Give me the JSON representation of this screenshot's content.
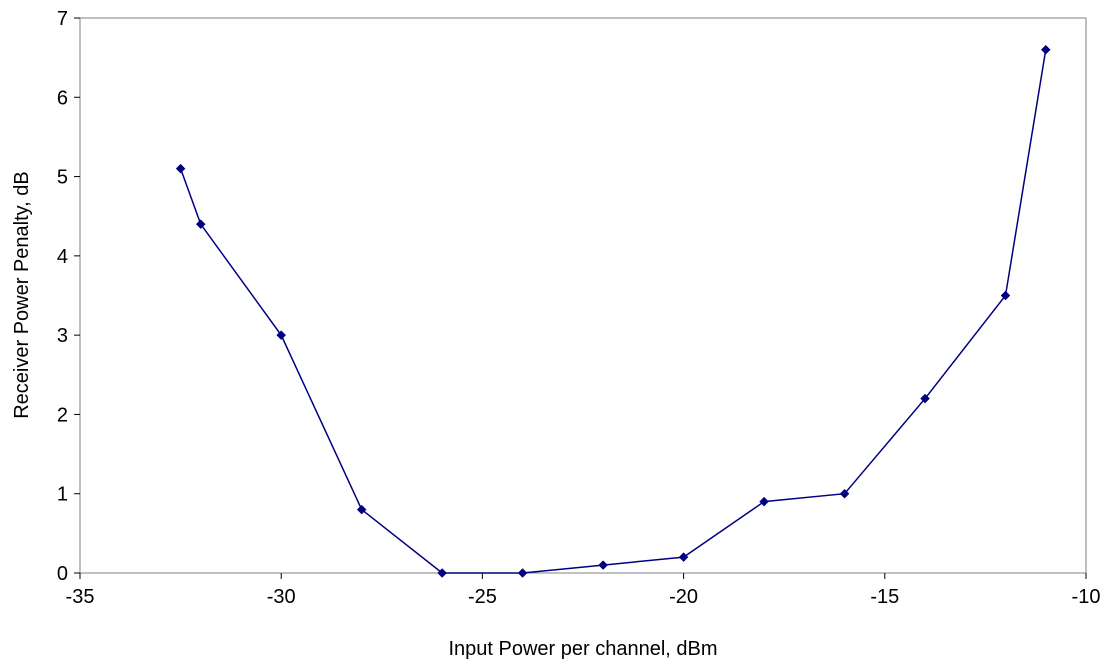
{
  "chart_data": {
    "type": "line",
    "title": "",
    "xlabel": "Input Power per channel, dBm",
    "ylabel": "Receiver Power Penalty, dB",
    "xlim": [
      -35,
      -10
    ],
    "ylim": [
      0,
      7
    ],
    "x_ticks": [
      -35,
      -30,
      -25,
      -20,
      -15,
      -10
    ],
    "y_ticks": [
      0,
      1,
      2,
      3,
      4,
      5,
      6,
      7
    ],
    "x_tick_labels": [
      "-35",
      "-30",
      "-25",
      "-20",
      "-15",
      "-10"
    ],
    "y_tick_labels": [
      "0",
      "1",
      "2",
      "3",
      "4",
      "5",
      "6",
      "7"
    ],
    "grid": false,
    "legend": "none",
    "series": [
      {
        "color": "#000080",
        "marker": "diamond",
        "x": [
          -32.5,
          -32,
          -30,
          -28,
          -26,
          -24,
          -22,
          -20,
          -18,
          -16,
          -14,
          -12,
          -11
        ],
        "y": [
          5.1,
          4.4,
          3.0,
          0.8,
          0.0,
          0.0,
          0.1,
          0.2,
          0.9,
          1.0,
          2.2,
          3.5,
          6.6
        ]
      }
    ]
  }
}
